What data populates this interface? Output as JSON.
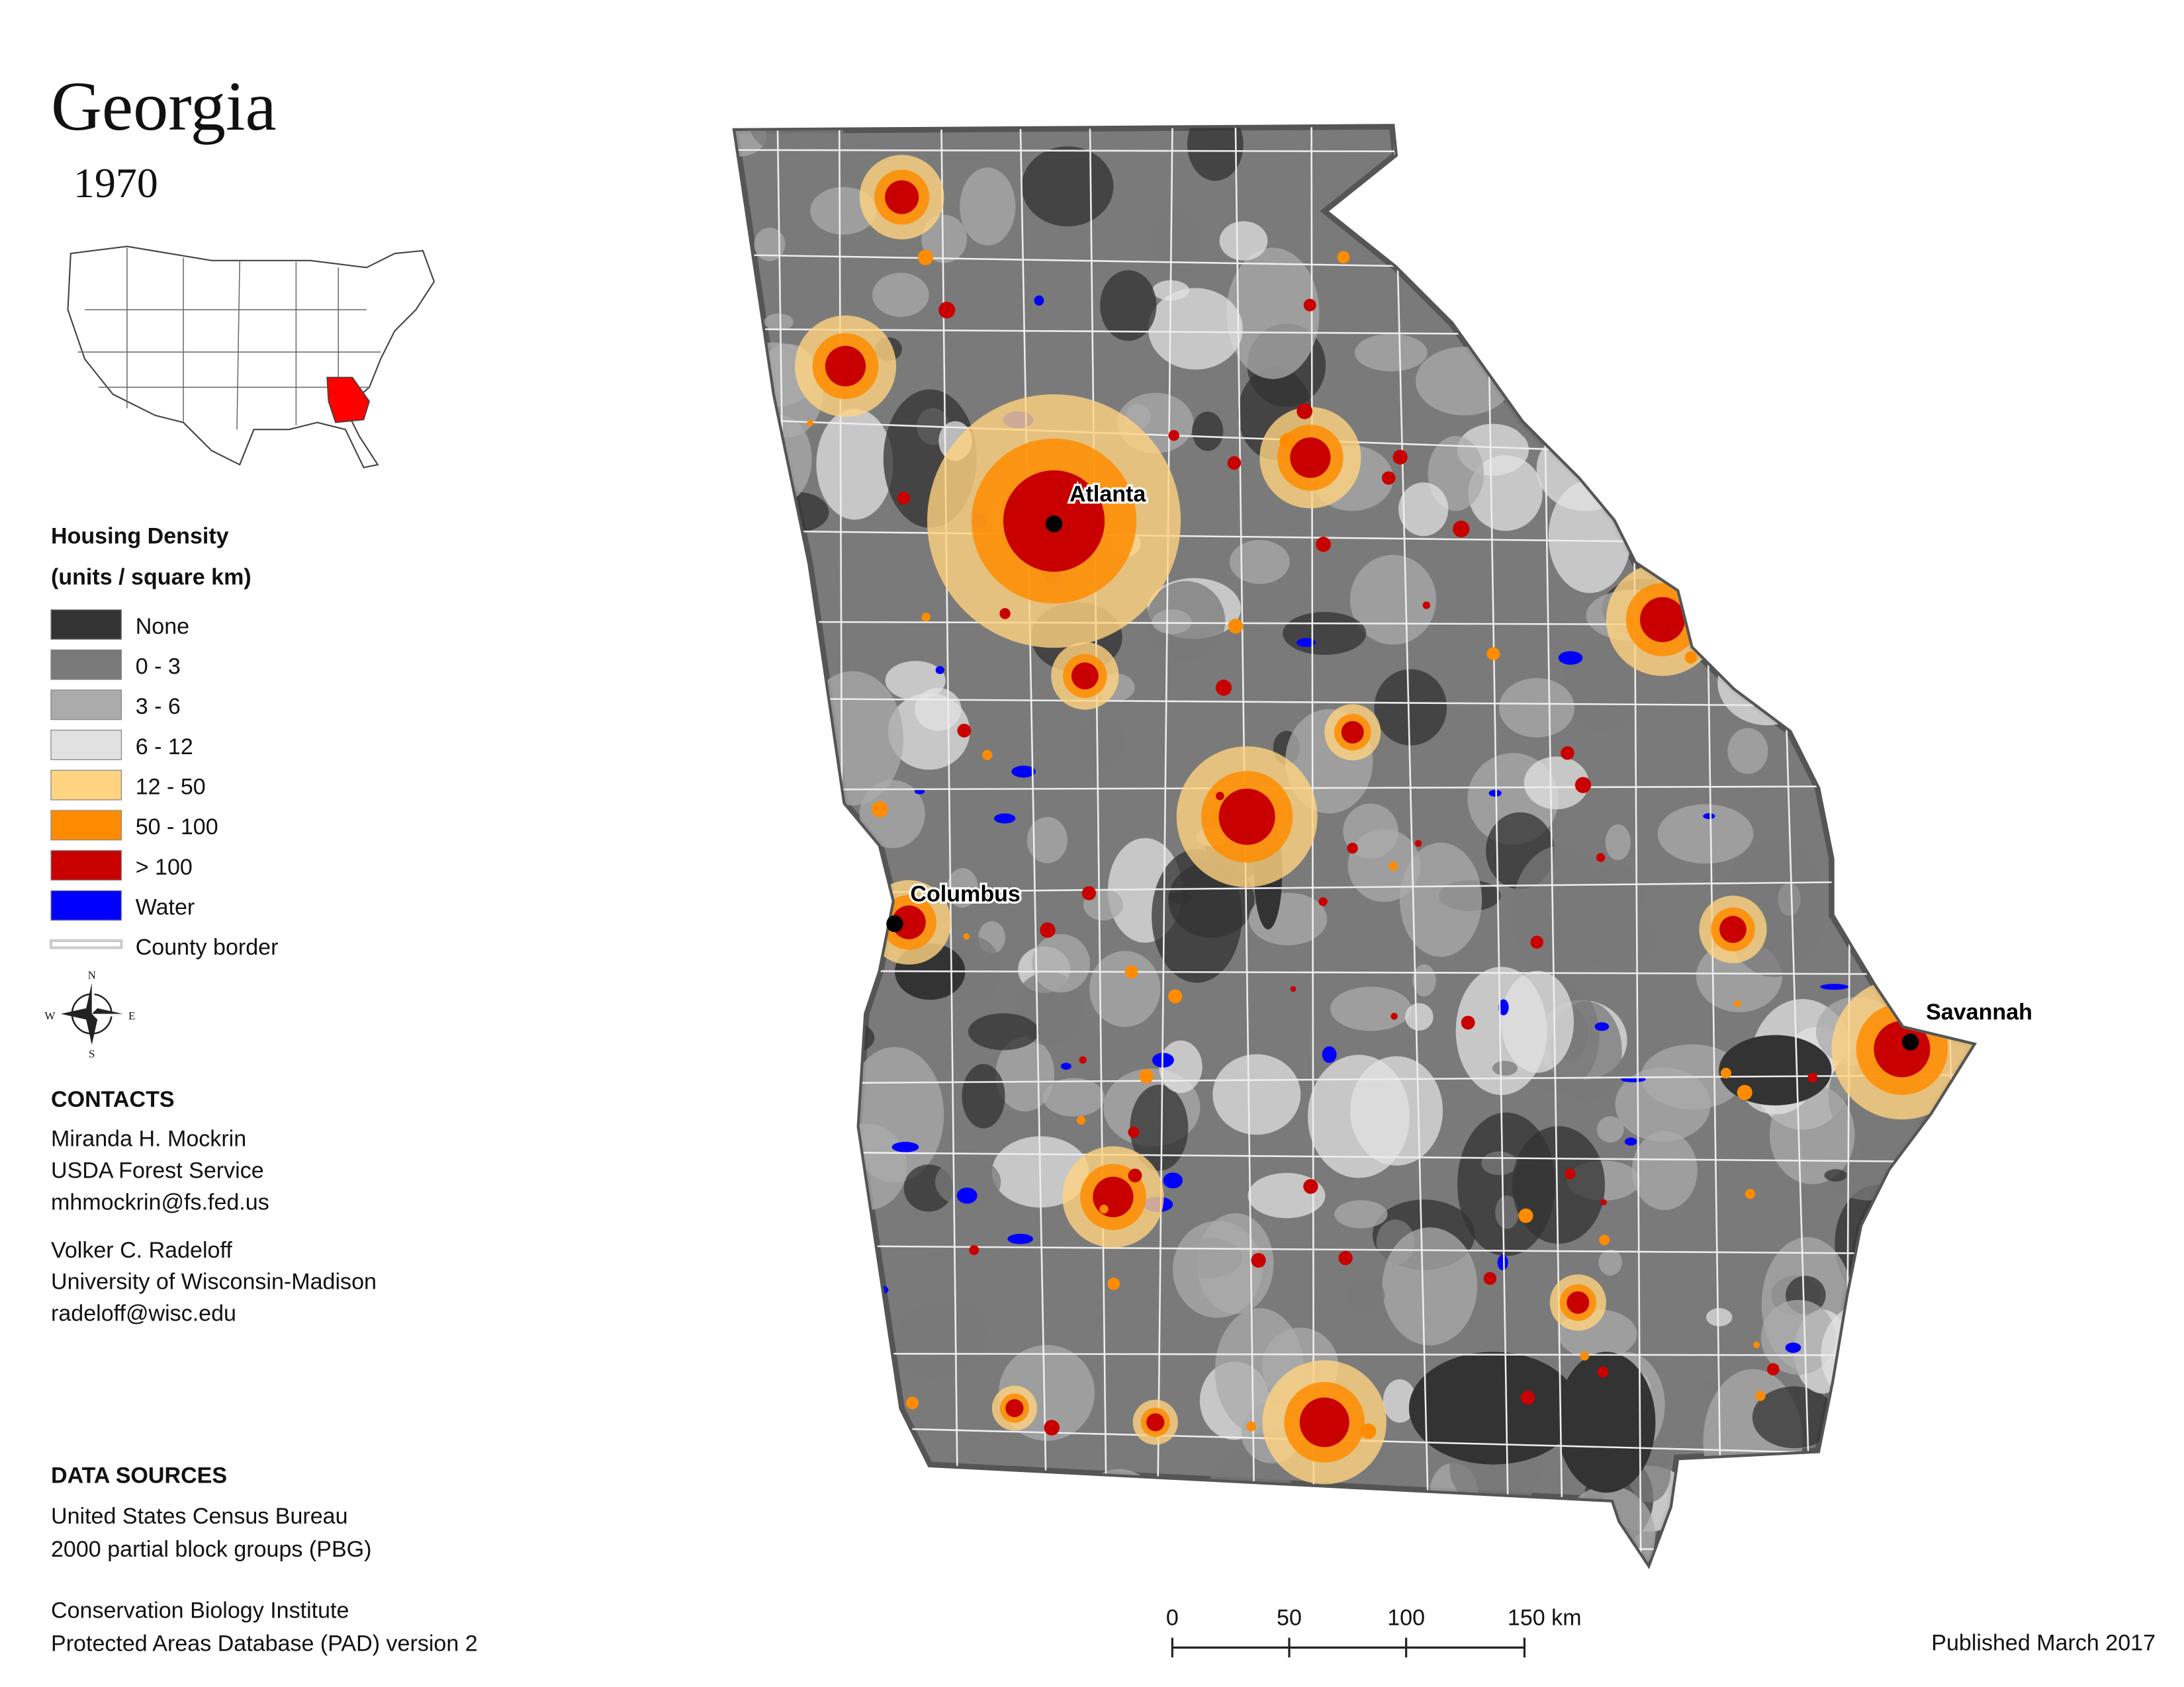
{
  "header": {
    "title": "Georgia",
    "year": "1970"
  },
  "legend": {
    "title": "Housing Density",
    "subtitle": "(units / square km)",
    "items": [
      {
        "label": "None",
        "color": "#333333"
      },
      {
        "label": "0 - 3",
        "color": "#7a7a7a"
      },
      {
        "label": "3 - 6",
        "color": "#ababab"
      },
      {
        "label": "6 - 12",
        "color": "#e1e1e1"
      },
      {
        "label": "12 - 50",
        "color": "#ffd37f"
      },
      {
        "label": "50 - 100",
        "color": "#ff8c00"
      },
      {
        "label": "> 100",
        "color": "#c80000"
      },
      {
        "label": "Water",
        "color": "#0000ff"
      },
      {
        "label": "County border",
        "color": "#cccccc"
      }
    ]
  },
  "compass": {
    "n": "N",
    "s": "S",
    "e": "E",
    "w": "W"
  },
  "cities": [
    {
      "label": "Atlanta"
    },
    {
      "label": "Columbus"
    },
    {
      "label": "Savannah"
    }
  ],
  "contacts": {
    "heading": "CONTACTS",
    "people": [
      [
        "Miranda H. Mockrin",
        "USDA Forest Service",
        "mhmockrin@fs.fed.us"
      ],
      [
        "Volker C. Radeloff",
        "University of Wisconsin-Madison",
        "radeloff@wisc.edu"
      ]
    ]
  },
  "data_sources": {
    "heading": "DATA SOURCES",
    "entries": [
      [
        "United States Census Bureau",
        "2000 partial block groups (PBG)"
      ],
      [
        "Conservation Biology Institute",
        "Protected Areas Database (PAD) version 2"
      ]
    ]
  },
  "scale_bar": {
    "labels": [
      "0",
      "50",
      "100",
      "150 km"
    ]
  },
  "footer": {
    "published": "Published March 2017"
  }
}
